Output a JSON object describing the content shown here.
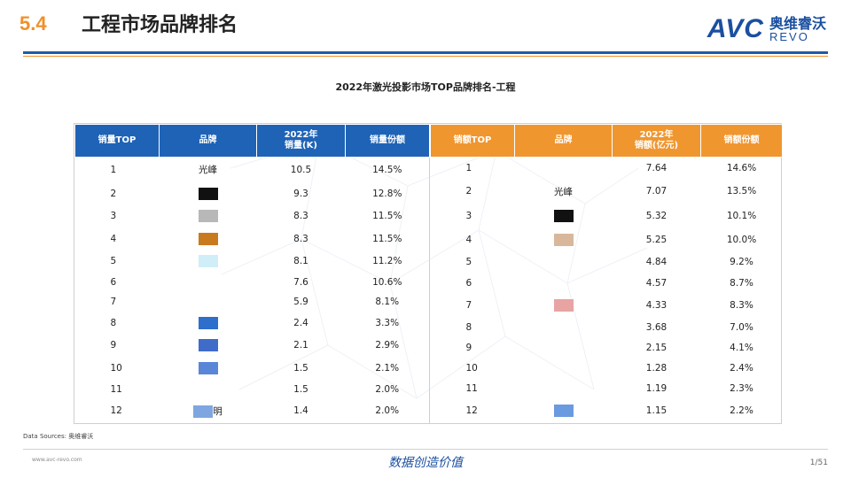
{
  "header": {
    "section_number": "5.4",
    "title": "工程市场品牌排名",
    "logo_text": "AVC",
    "logo_cn": "奥维睿沃",
    "logo_en": "REVO"
  },
  "chart_title": "2022年激光投影市场TOP品牌排名-工程",
  "left_table": {
    "headers": [
      "销量TOP",
      "品牌",
      "2022年\n销量(K)",
      "销量份额"
    ],
    "rows": [
      {
        "rank": "1",
        "brand": "光峰",
        "value": "10.5",
        "share": "14.5%"
      },
      {
        "rank": "2",
        "brand": "",
        "value": "9.3",
        "share": "12.8%"
      },
      {
        "rank": "3",
        "brand": "",
        "value": "8.3",
        "share": "11.5%"
      },
      {
        "rank": "4",
        "brand": "",
        "value": "8.3",
        "share": "11.5%"
      },
      {
        "rank": "5",
        "brand": "",
        "value": "8.1",
        "share": "11.2%"
      },
      {
        "rank": "6",
        "brand": "",
        "value": "7.6",
        "share": "10.6%"
      },
      {
        "rank": "7",
        "brand": "",
        "value": "5.9",
        "share": "8.1%"
      },
      {
        "rank": "8",
        "brand": "",
        "value": "2.4",
        "share": "3.3%"
      },
      {
        "rank": "9",
        "brand": "",
        "value": "2.1",
        "share": "2.9%"
      },
      {
        "rank": "10",
        "brand": "",
        "value": "1.5",
        "share": "2.1%"
      },
      {
        "rank": "11",
        "brand": "",
        "value": "1.5",
        "share": "2.0%"
      },
      {
        "rank": "12",
        "brand": "明",
        "value": "1.4",
        "share": "2.0%"
      }
    ]
  },
  "right_table": {
    "headers": [
      "销额TOP",
      "品牌",
      "2022年\n销额(亿元)",
      "销额份额"
    ],
    "rows": [
      {
        "rank": "1",
        "brand": "",
        "value": "7.64",
        "share": "14.6%"
      },
      {
        "rank": "2",
        "brand": "光峰",
        "value": "7.07",
        "share": "13.5%"
      },
      {
        "rank": "3",
        "brand": "",
        "value": "5.32",
        "share": "10.1%"
      },
      {
        "rank": "4",
        "brand": "",
        "value": "5.25",
        "share": "10.0%"
      },
      {
        "rank": "5",
        "brand": "",
        "value": "4.84",
        "share": "9.2%"
      },
      {
        "rank": "6",
        "brand": "",
        "value": "4.57",
        "share": "8.7%"
      },
      {
        "rank": "7",
        "brand": "",
        "value": "4.33",
        "share": "8.3%"
      },
      {
        "rank": "8",
        "brand": "",
        "value": "3.68",
        "share": "7.0%"
      },
      {
        "rank": "9",
        "brand": "",
        "value": "2.15",
        "share": "4.1%"
      },
      {
        "rank": "10",
        "brand": "",
        "value": "1.28",
        "share": "2.4%"
      },
      {
        "rank": "11",
        "brand": "",
        "value": "1.19",
        "share": "2.3%"
      },
      {
        "rank": "12",
        "brand": "",
        "value": "1.15",
        "share": "2.2%"
      }
    ]
  },
  "redaction_colors": {
    "left": [
      "",
      "#111111",
      "#b8b8b8",
      "#c97a1e",
      "#cfeef7",
      "",
      "",
      "#2f6fcc",
      "#3f6cc8",
      "#5a86d8",
      "",
      "#7fa6e0"
    ],
    "right": [
      "",
      "",
      "#111111",
      "#d9b79a",
      "",
      "",
      "#e8a3a3",
      "",
      "",
      "",
      "",
      "#6a9ae0"
    ]
  },
  "footer": {
    "source": "Data Sources: 奥维睿沃",
    "url": "www.avc-revo.com",
    "slogan": "数据创造价值",
    "page": "1/51"
  },
  "colors": {
    "blue_header": "#1f63b6",
    "orange_header": "#f0962f",
    "accent": "#f0902a"
  }
}
